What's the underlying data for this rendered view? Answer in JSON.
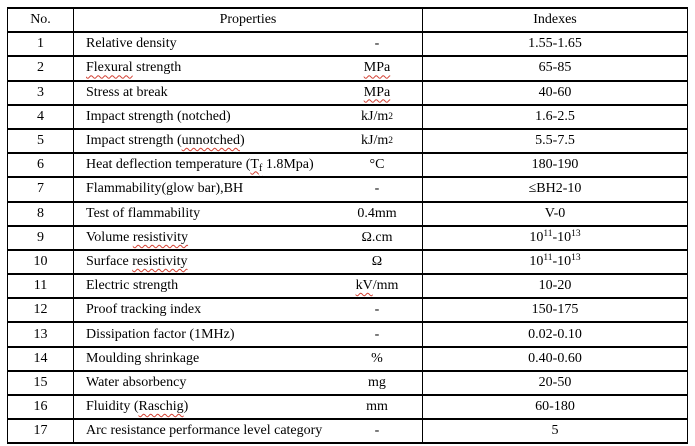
{
  "header": {
    "no": "No.",
    "properties": "Properties",
    "indexes": "Indexes"
  },
  "colors": {
    "border": "#000000",
    "text": "#000000",
    "spellcheck_underline": "#d23f31",
    "background": "#ffffff"
  },
  "rows": [
    {
      "no": "1",
      "property": [
        {
          "t": "Relative density"
        }
      ],
      "unit": [
        {
          "t": "-"
        }
      ],
      "index": [
        {
          "t": "1.55-1.65"
        }
      ]
    },
    {
      "no": "2",
      "property": [
        {
          "t": "Flexural",
          "w": true
        },
        {
          "t": " strength"
        }
      ],
      "unit": [
        {
          "t": "MPa",
          "w": true
        }
      ],
      "index": [
        {
          "t": "65-85"
        }
      ]
    },
    {
      "no": "3",
      "property": [
        {
          "t": "Stress at break"
        }
      ],
      "unit": [
        {
          "t": "MPa",
          "w": true
        }
      ],
      "index": [
        {
          "t": "40-60"
        }
      ]
    },
    {
      "no": "4",
      "property": [
        {
          "t": "Impact strength (notched)"
        }
      ],
      "unit": [
        {
          "t": "kJ/m"
        },
        {
          "t": "2",
          "sup": true
        }
      ],
      "index": [
        {
          "t": "1.6-2.5"
        }
      ]
    },
    {
      "no": "5",
      "property": [
        {
          "t": "Impact strength ("
        },
        {
          "t": "unnotched",
          "w": true
        },
        {
          "t": ")"
        }
      ],
      "unit": [
        {
          "t": "kJ/m"
        },
        {
          "t": "2",
          "sup": true
        }
      ],
      "index": [
        {
          "t": "5.5-7.5"
        }
      ]
    },
    {
      "no": "6",
      "property": [
        {
          "t": "Heat deflection temperature ("
        },
        {
          "t": "T",
          "w": true
        },
        {
          "t": "f",
          "sub": true,
          "w": true
        },
        {
          "t": " 1.8Mpa)"
        }
      ],
      "unit": [
        {
          "t": "°C"
        }
      ],
      "index": [
        {
          "t": "180-190"
        }
      ]
    },
    {
      "no": "7",
      "property": [
        {
          "t": "Flammability(glow bar),BH"
        }
      ],
      "unit": [
        {
          "t": "-"
        }
      ],
      "index": [
        {
          "t": "≤BH2-10"
        }
      ]
    },
    {
      "no": "8",
      "property": [
        {
          "t": "Test of flammability"
        }
      ],
      "unit": [
        {
          "t": "0.4mm"
        }
      ],
      "index": [
        {
          "t": "V-0"
        }
      ]
    },
    {
      "no": "9",
      "property": [
        {
          "t": "Volume "
        },
        {
          "t": "resistivity",
          "w": true
        }
      ],
      "unit": [
        {
          "t": "Ω.cm"
        }
      ],
      "index": [
        {
          "t": "10"
        },
        {
          "t": "11",
          "sup": true
        },
        {
          "t": "-10"
        },
        {
          "t": "13",
          "sup": true
        }
      ]
    },
    {
      "no": "10",
      "property": [
        {
          "t": "Surface "
        },
        {
          "t": "resistivity",
          "w": true
        }
      ],
      "unit": [
        {
          "t": "Ω"
        }
      ],
      "index": [
        {
          "t": "10"
        },
        {
          "t": "11",
          "sup": true
        },
        {
          "t": "-10"
        },
        {
          "t": "13",
          "sup": true
        }
      ]
    },
    {
      "no": "11",
      "property": [
        {
          "t": "Electric strength"
        }
      ],
      "unit": [
        {
          "t": "kV",
          "w": true
        },
        {
          "t": "/mm"
        }
      ],
      "index": [
        {
          "t": "10-20"
        }
      ]
    },
    {
      "no": "12",
      "property": [
        {
          "t": "Proof tracking index"
        }
      ],
      "unit": [
        {
          "t": "-"
        }
      ],
      "index": [
        {
          "t": "150-175"
        }
      ]
    },
    {
      "no": "13",
      "property": [
        {
          "t": "Dissipation factor (1MHz)"
        }
      ],
      "unit": [
        {
          "t": "-"
        }
      ],
      "index": [
        {
          "t": "0.02-0.10"
        }
      ]
    },
    {
      "no": "14",
      "property": [
        {
          "t": "Moulding shrinkage"
        }
      ],
      "unit": [
        {
          "t": "%"
        }
      ],
      "index": [
        {
          "t": "0.40-0.60"
        }
      ]
    },
    {
      "no": "15",
      "property": [
        {
          "t": "Water absorbency"
        }
      ],
      "unit": [
        {
          "t": "mg"
        }
      ],
      "index": [
        {
          "t": "20-50"
        }
      ]
    },
    {
      "no": "16",
      "property": [
        {
          "t": "Fluidity ("
        },
        {
          "t": "Raschig",
          "w": true
        },
        {
          "t": ")"
        }
      ],
      "unit": [
        {
          "t": "mm"
        }
      ],
      "index": [
        {
          "t": "60-180"
        }
      ]
    },
    {
      "no": "17",
      "property": [
        {
          "t": "Arc resistance performance level category"
        }
      ],
      "unit": [
        {
          "t": "-"
        }
      ],
      "index": [
        {
          "t": "5"
        }
      ]
    }
  ]
}
